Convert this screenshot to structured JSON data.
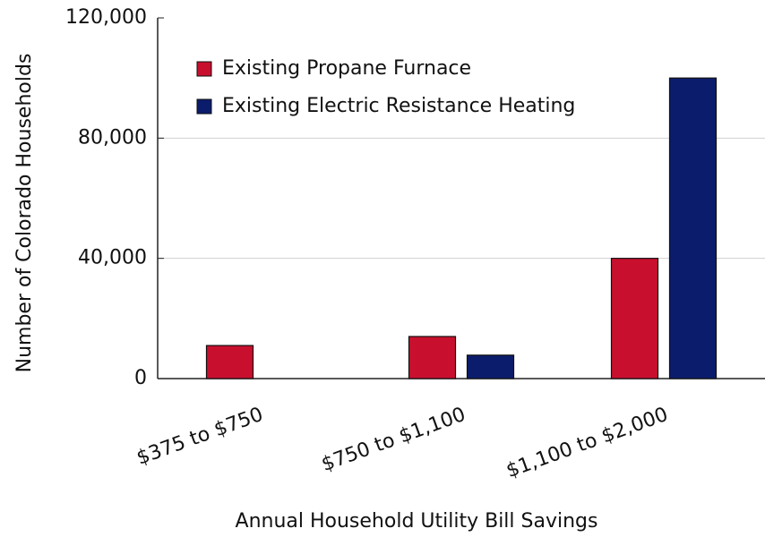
{
  "chart_data": {
    "type": "bar",
    "x_label": "Annual Household Utility Bill Savings",
    "y_label": "Number of Colorado Households",
    "categories": [
      "$375 to $750",
      "$750 to $1,100",
      "$1,100 to $2,000"
    ],
    "series": [
      {
        "name": "Existing Propane Furnace",
        "color": "#c8102e",
        "values": [
          11000,
          14000,
          40000
        ]
      },
      {
        "name": "Existing Electric Resistance Heating",
        "color": "#0c1c6c",
        "values": [
          null,
          7800,
          100000
        ]
      }
    ],
    "ylim": [
      0,
      120000
    ],
    "yticks": [
      0,
      {
        "value": 40000,
        "label": "40,000"
      },
      {
        "value": 80000,
        "label": "80,000"
      },
      {
        "value": 120000,
        "label": "120,000"
      }
    ],
    "grid": true
  }
}
